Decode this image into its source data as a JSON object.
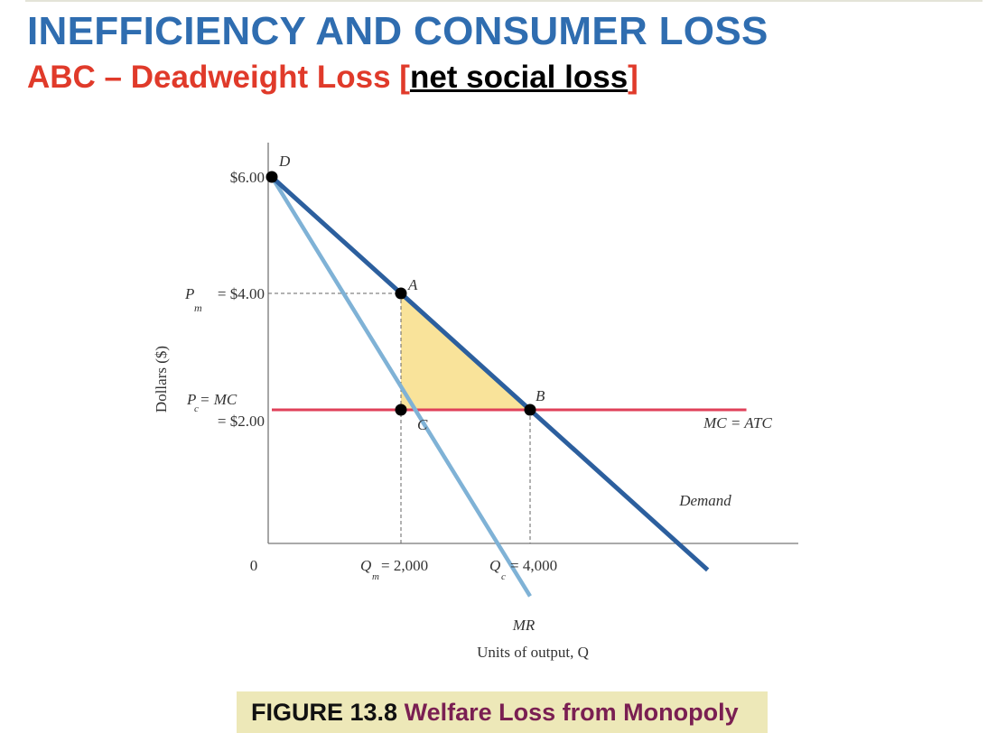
{
  "header": {
    "title": "INEFFICIENCY AND CONSUMER LOSS",
    "subtitle_prefix": "ABC – Deadweight Loss ",
    "subtitle_open_bracket": "[",
    "subtitle_bracketed": "net social loss",
    "subtitle_close_bracket": "]"
  },
  "caption": {
    "figure_number": "FIGURE 13.8",
    "figure_title": "Welfare Loss from Monopoly"
  },
  "chart_data": {
    "type": "line",
    "ylabel": "Dollars ($)",
    "xlabel": "Units of output, Q",
    "origin_label": "0",
    "y_ticks": [
      {
        "value": 6,
        "label": "$6.00"
      },
      {
        "value": 4,
        "label": "= $4.00",
        "prefix": "P",
        "sub": "m"
      },
      {
        "value": 2,
        "label_line1": "= MC",
        "label_line2": "= $2.00",
        "prefix": "P",
        "sub": "c"
      }
    ],
    "x_ticks": [
      {
        "value": 2000,
        "prefix": "Q",
        "sub": "m",
        "label": "= 2,000"
      },
      {
        "value": 4000,
        "prefix": "Q",
        "sub": "c",
        "label": "= 4,000"
      }
    ],
    "xlim": [
      0,
      8500
    ],
    "ylim": [
      0,
      6.3
    ],
    "series": [
      {
        "name": "Demand",
        "points": [
          [
            0,
            6
          ],
          [
            6750,
            -0.75
          ]
        ],
        "color": "#2c5f9e"
      },
      {
        "name": "MR",
        "points": [
          [
            0,
            6
          ],
          [
            4000,
            -1.2
          ]
        ],
        "color": "#7fb2d6"
      },
      {
        "name": "MC = ATC",
        "points": [
          [
            0,
            2
          ],
          [
            7350,
            2
          ]
        ],
        "color": "#e0405a"
      }
    ],
    "points": [
      {
        "label": "D",
        "x": 0,
        "y": 6
      },
      {
        "label": "A",
        "x": 2000,
        "y": 4
      },
      {
        "label": "B",
        "x": 4000,
        "y": 2
      },
      {
        "label": "C",
        "x": 2000,
        "y": 2
      }
    ],
    "deadweight_loss_triangle": [
      [
        2000,
        4
      ],
      [
        4000,
        2
      ],
      [
        2000,
        2
      ]
    ],
    "triangle_color": "#f9e39a",
    "curve_labels": {
      "mr": "MR",
      "mc": "MC = ATC",
      "demand": "Demand"
    }
  }
}
